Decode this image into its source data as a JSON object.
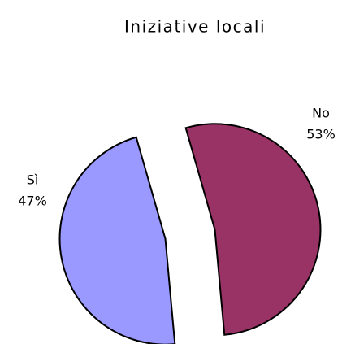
{
  "chart_data": {
    "type": "pie",
    "title": "Iniziative locali",
    "categories": [
      "No",
      "Sì"
    ],
    "values": [
      53,
      47
    ],
    "value_labels": [
      "53%",
      "47%"
    ],
    "colors": [
      "#993366",
      "#9999ff"
    ]
  }
}
